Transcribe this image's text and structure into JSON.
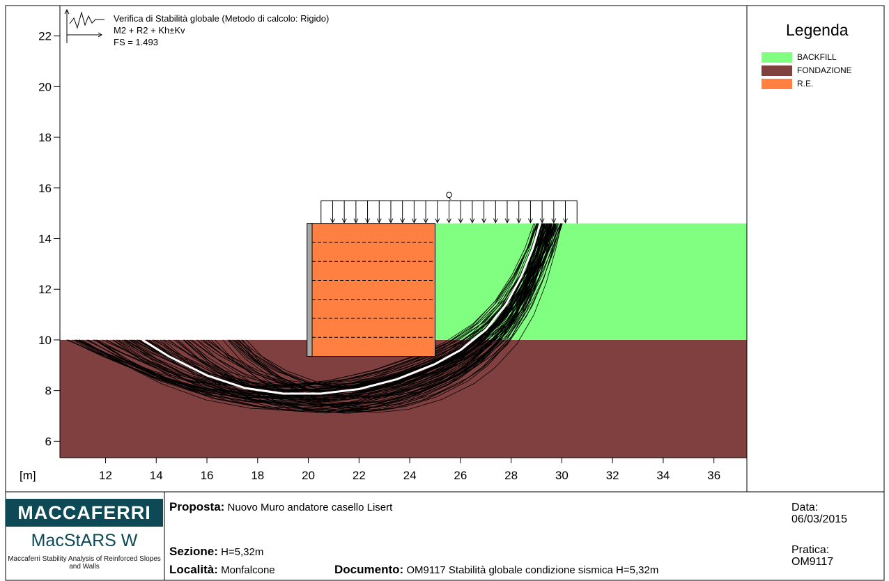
{
  "header": {
    "line1": "Verifica di Stabilità globale (Metodo di calcolo: Rigido)",
    "line2": "M2 + R2 + Kh±Kv",
    "line3": "FS = 1.493"
  },
  "legend": {
    "title": "Legenda",
    "items": [
      {
        "label": "BACKFILL",
        "color": "#80ff80"
      },
      {
        "label": "FONDAZIONE",
        "color": "#804040"
      },
      {
        "label": "R.E.",
        "color": "#ff8040"
      }
    ]
  },
  "axis": {
    "unit_label": "[m]",
    "x_range": [
      10.2,
      37.3
    ],
    "y_range": [
      5.35,
      23.2
    ],
    "x_ticks": [
      12,
      14,
      16,
      18,
      20,
      22,
      24,
      26,
      28,
      30,
      32,
      34,
      36
    ],
    "y_ticks": [
      6,
      8,
      10,
      12,
      14,
      16,
      18,
      20,
      22
    ]
  },
  "geometry": {
    "foundation_top": 10.0,
    "ground_top": 14.6,
    "reinforced_block": {
      "x0": 20.1,
      "x1": 25.0,
      "y0": 9.35,
      "y1": 14.6
    },
    "facing": {
      "x0": 19.95,
      "x1": 20.15
    },
    "reinforcement_levels": [
      10.1,
      10.85,
      11.6,
      12.35,
      13.1,
      13.85
    ],
    "surcharge": {
      "label": "Q",
      "x0": 20.5,
      "x1": 30.6,
      "y_top": 15.5,
      "arrow_count": 22
    },
    "critical_surface": [
      [
        13.45,
        10.0
      ],
      [
        14.5,
        9.35
      ],
      [
        16.0,
        8.6
      ],
      [
        17.5,
        8.1
      ],
      [
        19.0,
        7.88
      ],
      [
        20.5,
        7.88
      ],
      [
        22.0,
        8.06
      ],
      [
        23.5,
        8.45
      ],
      [
        25.0,
        9.05
      ],
      [
        26.0,
        9.6
      ],
      [
        27.0,
        10.4
      ],
      [
        27.8,
        11.4
      ],
      [
        28.4,
        12.5
      ],
      [
        28.85,
        13.6
      ],
      [
        29.15,
        14.6
      ]
    ]
  },
  "title_block": {
    "brand": "MACCAFERRI",
    "product": "MacStARS W",
    "product_sub": "Maccaferri Stability Analysis of Reinforced Slopes and Walls",
    "proposta_key": "Proposta:",
    "proposta_value": "Nuovo Muro andatore casello Lisert",
    "sezione_key": "Sezione:",
    "sezione_value": "H=5,32m",
    "localita_key": "Località:",
    "localita_value": "Monfalcone",
    "documento_key": "Documento:",
    "documento_value": "OM9117 Stabilità globale condizione sismica H=5,32m",
    "data_key": "Data:",
    "data_value": "06/03/2015",
    "pratica_key": "Pratica:",
    "pratica_value": "OM9117"
  }
}
